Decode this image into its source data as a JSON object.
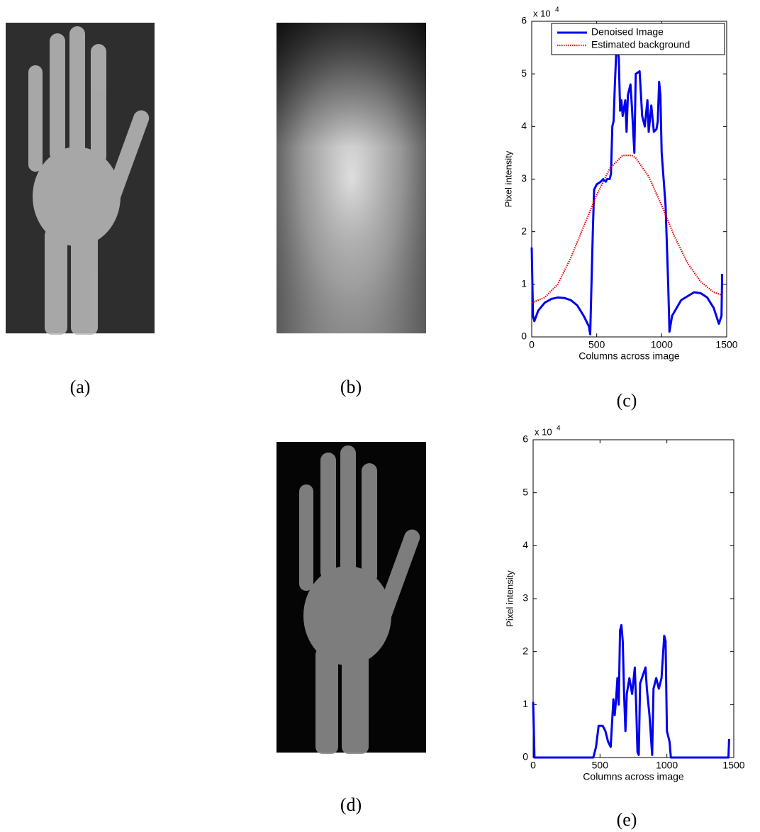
{
  "captions": [
    "(a)",
    "(b)",
    "(c)",
    "(d)",
    "(e)"
  ],
  "chart_data": [
    {
      "type": "line",
      "xlabel": "Columns across image",
      "ylabel": "Pixel intensity",
      "y_multiplier": "x 10",
      "y_multiplier_exp": "4",
      "xlim": [
        0,
        1500
      ],
      "ylim": [
        0,
        6
      ],
      "xticks": [
        0,
        500,
        1000,
        1500
      ],
      "yticks": [
        0,
        1,
        2,
        3,
        4,
        5,
        6
      ],
      "legend": "upper right",
      "series": [
        {
          "name": "Denoised Image",
          "color": "#0000ee",
          "style": "solid",
          "x": [
            0,
            10,
            20,
            50,
            100,
            150,
            200,
            250,
            300,
            350,
            400,
            440,
            450,
            470,
            480,
            500,
            530,
            550,
            570,
            580,
            600,
            610,
            620,
            630,
            640,
            650,
            660,
            670,
            680,
            690,
            700,
            720,
            730,
            740,
            760,
            770,
            790,
            800,
            830,
            850,
            870,
            890,
            900,
            920,
            940,
            960,
            970,
            980,
            990,
            1000,
            1030,
            1050,
            1060,
            1080,
            1150,
            1250,
            1300,
            1350,
            1400,
            1440,
            1460,
            1465
          ],
          "values": [
            1.7,
            0.4,
            0.3,
            0.5,
            0.65,
            0.72,
            0.75,
            0.74,
            0.7,
            0.6,
            0.4,
            0.2,
            0.05,
            2.0,
            2.8,
            2.9,
            2.95,
            3.0,
            2.95,
            3.0,
            3.0,
            3.1,
            4.0,
            4.1,
            4.8,
            5.4,
            5.5,
            5.3,
            4.3,
            4.5,
            4.2,
            4.5,
            3.9,
            4.6,
            4.8,
            4.4,
            3.5,
            5.0,
            5.05,
            4.2,
            4.0,
            4.5,
            3.9,
            4.4,
            3.9,
            3.95,
            4.1,
            4.85,
            4.6,
            3.5,
            2.5,
            1.0,
            0.1,
            0.4,
            0.7,
            0.85,
            0.83,
            0.75,
            0.55,
            0.25,
            0.4,
            1.2
          ]
        },
        {
          "name": "Estimated background",
          "color": "#dd0000",
          "style": "dotted",
          "x": [
            0,
            100,
            200,
            300,
            400,
            500,
            600,
            700,
            770,
            800,
            900,
            1000,
            1100,
            1200,
            1300,
            1400,
            1460
          ],
          "values": [
            0.65,
            0.75,
            1.0,
            1.5,
            2.1,
            2.7,
            3.2,
            3.45,
            3.45,
            3.4,
            3.05,
            2.5,
            1.9,
            1.4,
            1.05,
            0.85,
            0.8
          ]
        }
      ]
    },
    {
      "type": "line",
      "xlabel": "Columns across image",
      "ylabel": "Pixel intensity",
      "y_multiplier": "x 10",
      "y_multiplier_exp": "4",
      "xlim": [
        0,
        1500
      ],
      "ylim": [
        0,
        6
      ],
      "xticks": [
        0,
        500,
        1000,
        1500
      ],
      "yticks": [
        0,
        1,
        2,
        3,
        4,
        5,
        6
      ],
      "series": [
        {
          "color": "#0000ee",
          "style": "solid",
          "x": [
            0,
            10,
            450,
            470,
            490,
            520,
            540,
            560,
            580,
            600,
            610,
            620,
            630,
            640,
            650,
            660,
            670,
            680,
            690,
            700,
            720,
            740,
            760,
            770,
            780,
            790,
            800,
            820,
            840,
            850,
            870,
            890,
            900,
            920,
            940,
            960,
            980,
            990,
            1000,
            1020,
            1030,
            1460,
            1465
          ],
          "values": [
            1.05,
            0,
            0,
            0.2,
            0.6,
            0.6,
            0.5,
            0.3,
            0.2,
            1.1,
            0.8,
            1.1,
            1.5,
            1.0,
            2.4,
            2.5,
            2.2,
            1.2,
            0.5,
            1.2,
            1.5,
            1.2,
            1.7,
            1.0,
            0.1,
            0.05,
            1.4,
            1.55,
            1.7,
            1.3,
            0.8,
            0.05,
            1.3,
            1.5,
            1.3,
            1.5,
            2.3,
            2.2,
            0.5,
            0.3,
            0,
            0,
            0.35
          ]
        }
      ]
    }
  ]
}
